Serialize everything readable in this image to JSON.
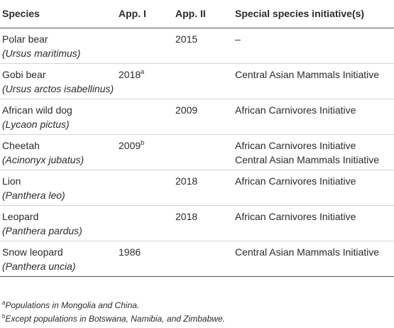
{
  "table": {
    "headers": [
      "Species",
      "App. I",
      "App. II",
      "Special species initiative(s)"
    ],
    "rows": [
      {
        "common": "Polar bear",
        "scientific": "(Ursus maritimus)",
        "app1": "",
        "app1_note": "",
        "app2": "2015",
        "initiatives": [
          "–"
        ]
      },
      {
        "common": "Gobi bear",
        "scientific": "(Ursus arctos isabellinus)",
        "app1": "2018",
        "app1_note": "a",
        "app2": "",
        "initiatives": [
          "Central Asian Mammals Initiative"
        ]
      },
      {
        "common": "African wild dog",
        "scientific": "(Lycaon pictus)",
        "app1": "",
        "app1_note": "",
        "app2": "2009",
        "initiatives": [
          "African Carnivores Initiative"
        ]
      },
      {
        "common": "Cheetah",
        "scientific": "(Acinonyx jubatus)",
        "app1": "2009",
        "app1_note": "b",
        "app2": "",
        "initiatives": [
          "African Carnivores Initiative",
          "Central Asian Mammals Initiative"
        ]
      },
      {
        "common": "Lion",
        "scientific": "(Panthera leo)",
        "app1": "",
        "app1_note": "",
        "app2": "2018",
        "initiatives": [
          "African Carnivores Initiative"
        ]
      },
      {
        "common": "Leopard",
        "scientific": "(Panthera pardus)",
        "app1": "",
        "app1_note": "",
        "app2": "2018",
        "initiatives": [
          "African Carnivores Initiative"
        ]
      },
      {
        "common": "Snow leopard",
        "scientific": "(Panthera uncia)",
        "app1": "1986",
        "app1_note": "",
        "app2": "",
        "initiatives": [
          "Central Asian Mammals Initiative"
        ]
      }
    ]
  },
  "footnotes": [
    {
      "marker": "a",
      "text": "Populations in Mongolia and China."
    },
    {
      "marker": "b",
      "text": "Except populations in Botswana, Namibia, and Zimbabwe."
    }
  ]
}
